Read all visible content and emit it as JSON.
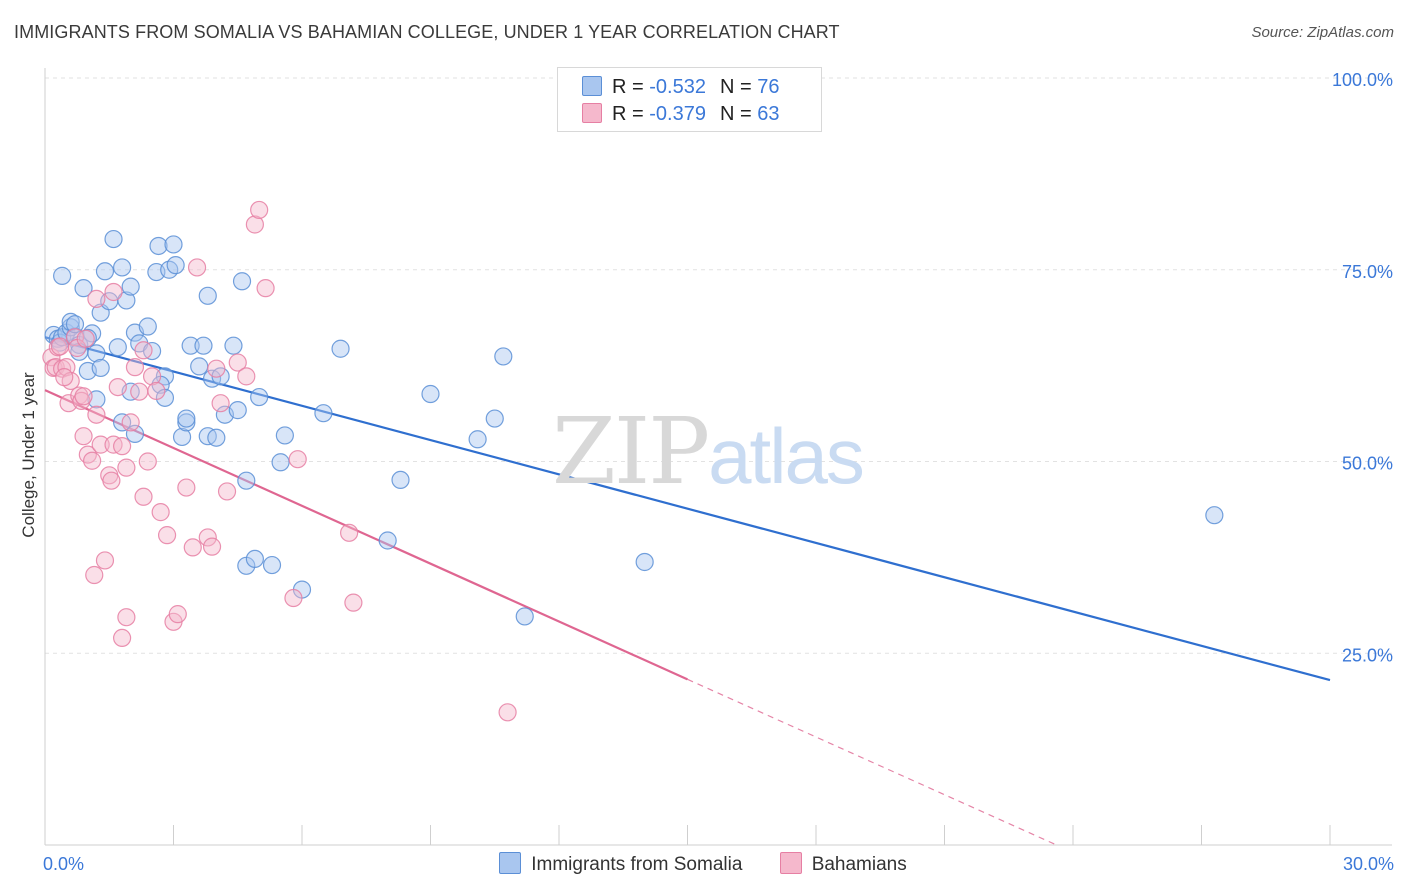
{
  "title": "IMMIGRANTS FROM SOMALIA VS BAHAMIAN COLLEGE, UNDER 1 YEAR CORRELATION CHART",
  "source": "Source: ZipAtlas.com",
  "watermark": {
    "zip": "ZIP",
    "atlas": "atlas"
  },
  "legend": {
    "somalia": {
      "r_label": "R = ",
      "r_value": "-0.532",
      "n_label": "N = ",
      "n_value": "76"
    },
    "bahamian": {
      "r_label": "R = ",
      "r_value": "-0.379",
      "n_label": "N = ",
      "n_value": "63"
    }
  },
  "bottom_legend": {
    "somalia": "Immigrants from Somalia",
    "bahamian": "Bahamians"
  },
  "chart_data": {
    "type": "scatter",
    "xlabel": "",
    "ylabel": "College, Under 1 year",
    "xlim": [
      0,
      30
    ],
    "ylim": [
      0,
      100
    ],
    "x_tick_labels": [
      {
        "value": 0,
        "label": "0.0%"
      },
      {
        "value": 30,
        "label": "30.0%"
      }
    ],
    "y_tick_labels": [
      {
        "value": 100,
        "label": "100.0%"
      },
      {
        "value": 75,
        "label": "75.0%"
      },
      {
        "value": 50,
        "label": "50.0%"
      },
      {
        "value": 25,
        "label": "25.0%"
      }
    ],
    "grid": true,
    "legend_position": "top-center",
    "colors": {
      "somalia": "#5b8fd6",
      "somalia_fill": "#a9c6ef",
      "bahamian": "#e67fa3",
      "bahamian_fill": "#f5b8cc",
      "somalia_line": "#2f6fcf",
      "bahamian_line": "#df6691",
      "axis_label": "#3b78d8"
    },
    "series": [
      {
        "name": "Immigrants from Somalia",
        "key": "somalia",
        "points": [
          [
            0.2,
            66.5
          ],
          [
            0.3,
            66
          ],
          [
            0.35,
            65.5
          ],
          [
            0.4,
            66.2
          ],
          [
            0.5,
            66.8
          ],
          [
            0.6,
            67.5
          ],
          [
            0.7,
            66.3
          ],
          [
            0.8,
            65.2
          ],
          [
            0.4,
            74.2
          ],
          [
            0.9,
            72.6
          ],
          [
            1.1,
            66.7
          ],
          [
            1.2,
            64.1
          ],
          [
            1.3,
            69.4
          ],
          [
            1.4,
            74.8
          ],
          [
            1.5,
            70.9
          ],
          [
            1.6,
            79
          ],
          [
            1.7,
            64.9
          ],
          [
            1.8,
            75.3
          ],
          [
            1.9,
            71
          ],
          [
            2.0,
            72.8
          ],
          [
            2.1,
            66.8
          ],
          [
            2.2,
            65.4
          ],
          [
            2.4,
            67.6
          ],
          [
            2.5,
            64.4
          ],
          [
            2.6,
            74.7
          ],
          [
            2.65,
            78.1
          ],
          [
            2.8,
            61.1
          ],
          [
            2.9,
            75
          ],
          [
            3.0,
            78.3
          ],
          [
            3.05,
            75.6
          ],
          [
            0.6,
            68.2
          ],
          [
            0.7,
            67.9
          ],
          [
            1.0,
            61.8
          ],
          [
            1.0,
            66.1
          ],
          [
            1.2,
            58.1
          ],
          [
            1.3,
            62.2
          ],
          [
            1.8,
            55.1
          ],
          [
            2.1,
            53.6
          ],
          [
            2.0,
            59.1
          ],
          [
            2.7,
            60
          ],
          [
            2.8,
            58.3
          ],
          [
            3.2,
            53.2
          ],
          [
            3.3,
            55.1
          ],
          [
            3.3,
            55.6
          ],
          [
            3.4,
            65.1
          ],
          [
            3.6,
            62.4
          ],
          [
            3.7,
            65.1
          ],
          [
            3.8,
            71.6
          ],
          [
            3.9,
            60.8
          ],
          [
            3.8,
            53.3
          ],
          [
            4.0,
            53.1
          ],
          [
            4.1,
            61.1
          ],
          [
            4.2,
            56.1
          ],
          [
            4.4,
            65.1
          ],
          [
            4.5,
            56.7
          ],
          [
            4.6,
            73.5
          ],
          [
            4.7,
            47.5
          ],
          [
            4.7,
            36.4
          ],
          [
            4.9,
            37.3
          ],
          [
            5.0,
            58.4
          ],
          [
            5.3,
            36.5
          ],
          [
            5.5,
            49.9
          ],
          [
            5.6,
            53.4
          ],
          [
            6.0,
            33.3
          ],
          [
            6.5,
            56.3
          ],
          [
            6.9,
            64.7
          ],
          [
            8.0,
            39.7
          ],
          [
            8.3,
            47.6
          ],
          [
            9.0,
            58.8
          ],
          [
            10.1,
            52.9
          ],
          [
            10.7,
            63.7
          ],
          [
            10.5,
            55.6
          ],
          [
            11.2,
            29.8
          ],
          [
            14.0,
            36.9
          ],
          [
            27.3,
            43
          ],
          [
            0.8,
            64.3
          ]
        ],
        "trend": {
          "x0": 0.0,
          "y0": 66.2,
          "x1": 30.0,
          "y1": 21.5
        }
      },
      {
        "name": "Bahamians",
        "key": "bahamian",
        "points": [
          [
            0.15,
            63.6
          ],
          [
            0.2,
            62.2
          ],
          [
            0.25,
            62.3
          ],
          [
            0.3,
            64.9
          ],
          [
            0.35,
            65
          ],
          [
            0.4,
            62.1
          ],
          [
            0.5,
            62.3
          ],
          [
            0.55,
            57.6
          ],
          [
            0.6,
            60.5
          ],
          [
            0.7,
            66.2
          ],
          [
            0.75,
            64.8
          ],
          [
            0.8,
            58.6
          ],
          [
            0.85,
            57.9
          ],
          [
            0.9,
            53.3
          ],
          [
            1.0,
            50.9
          ],
          [
            1.1,
            50.1
          ],
          [
            1.15,
            35.2
          ],
          [
            1.2,
            56.1
          ],
          [
            1.3,
            52.2
          ],
          [
            1.4,
            37.1
          ],
          [
            1.5,
            48.2
          ],
          [
            1.55,
            47.5
          ],
          [
            1.6,
            52.2
          ],
          [
            1.7,
            59.7
          ],
          [
            1.8,
            52
          ],
          [
            1.9,
            49.2
          ],
          [
            2.0,
            55.1
          ],
          [
            2.1,
            62.3
          ],
          [
            2.2,
            59.1
          ],
          [
            2.3,
            45.4
          ],
          [
            2.4,
            50
          ],
          [
            2.5,
            61.1
          ],
          [
            2.6,
            59.2
          ],
          [
            2.7,
            43.4
          ],
          [
            2.85,
            40.4
          ],
          [
            3.0,
            29.1
          ],
          [
            3.1,
            30.1
          ],
          [
            3.3,
            46.6
          ],
          [
            3.45,
            38.8
          ],
          [
            3.55,
            75.3
          ],
          [
            3.8,
            40.1
          ],
          [
            3.9,
            38.9
          ],
          [
            4.0,
            62.1
          ],
          [
            4.1,
            57.6
          ],
          [
            4.25,
            46.1
          ],
          [
            4.5,
            62.9
          ],
          [
            4.7,
            61.1
          ],
          [
            4.9,
            80.9
          ],
          [
            5.0,
            82.8
          ],
          [
            5.15,
            72.6
          ],
          [
            5.8,
            32.2
          ],
          [
            5.9,
            50.3
          ],
          [
            7.1,
            40.7
          ],
          [
            7.2,
            31.6
          ],
          [
            10.8,
            17.3
          ],
          [
            1.2,
            71.2
          ],
          [
            1.6,
            72.1
          ],
          [
            2.3,
            64.5
          ],
          [
            1.9,
            29.7
          ],
          [
            1.8,
            27
          ],
          [
            0.9,
            58.5
          ],
          [
            0.45,
            61
          ],
          [
            0.95,
            66
          ]
        ],
        "trend": {
          "x0": 0.0,
          "y0": 59.3,
          "x1": 15.0,
          "y1": 21.6
        },
        "trend_dashed_extension": {
          "x0": 15.0,
          "y0": 21.6,
          "x1": 30.0,
          "y1": -16.0
        }
      }
    ]
  }
}
